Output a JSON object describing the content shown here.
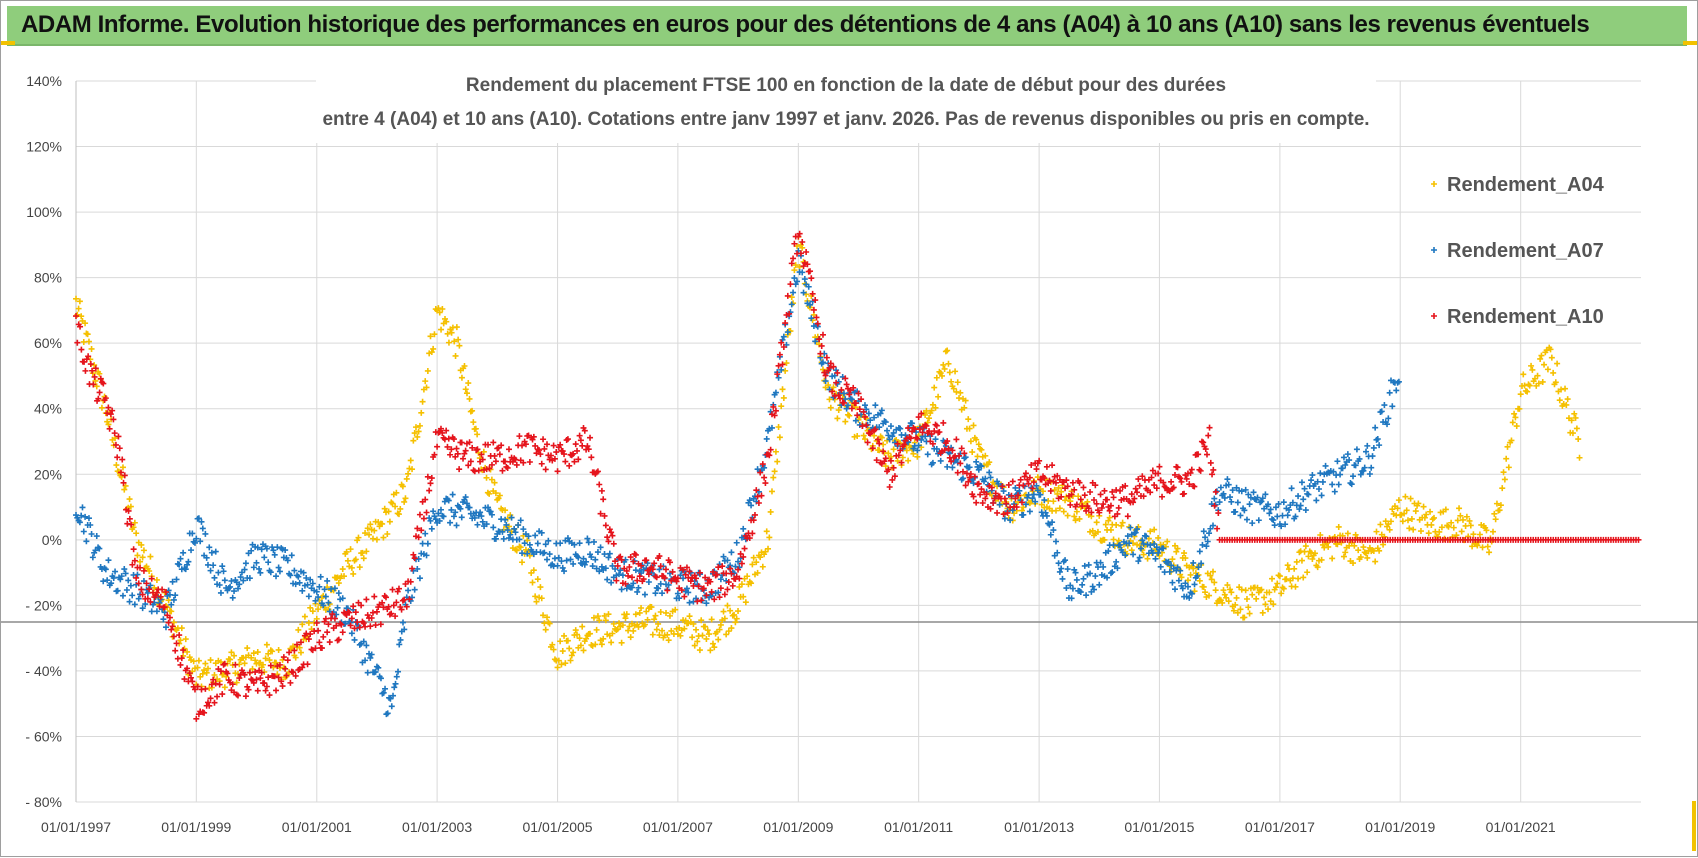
{
  "header": {
    "title": "ADAM Informe. Evolution historique des performances en euros pour des détentions de 4 ans (A04) à 10 ans (A10) sans les revenus éventuels"
  },
  "chart_data": {
    "type": "scatter",
    "title_line1": "Rendement du placement FTSE 100 en fonction de la date de début pour des durées",
    "title_line2": "entre 4 (A04) et 10 ans (A10). Cotations entre janv 1997 et janv. 2026. Pas de revenus disponibles ou pris en compte.",
    "xlabel": "",
    "ylabel": "",
    "x_range": [
      "1997-01-01",
      "2023-01-01"
    ],
    "ylim": [
      -80,
      140
    ],
    "y_ticks": [
      140,
      120,
      100,
      80,
      60,
      40,
      20,
      0,
      -20,
      -40,
      -60,
      -80
    ],
    "y_tick_labels": [
      "140%",
      "120%",
      "100%",
      "80%",
      "60%",
      "40%",
      "20%",
      "0%",
      "- 20%",
      "- 40%",
      "- 60%",
      "- 80%"
    ],
    "x_tick_labels": [
      "01/01/1997",
      "01/01/1999",
      "01/01/2001",
      "01/01/2003",
      "01/01/2005",
      "01/01/2007",
      "01/01/2009",
      "01/01/2011",
      "01/01/2013",
      "01/01/2015",
      "01/01/2017",
      "01/01/2019",
      "01/01/2021"
    ],
    "grid": true,
    "legend_position": "top-right",
    "marker": "+",
    "series": [
      {
        "name": "Rendement_A04",
        "color": "#f5c000",
        "x": [
          "1997-01-01",
          "1997-07-01",
          "1998-01-01",
          "1998-07-01",
          "1999-01-01",
          "1999-07-01",
          "2000-01-01",
          "2000-07-01",
          "2001-01-01",
          "2001-07-01",
          "2002-01-01",
          "2002-07-01",
          "2003-01-01",
          "2003-05-01",
          "2003-09-01",
          "2004-01-01",
          "2004-07-01",
          "2005-01-01",
          "2005-07-01",
          "2006-01-01",
          "2006-07-01",
          "2007-01-01",
          "2007-07-01",
          "2008-01-01",
          "2008-07-01",
          "2009-01-01",
          "2009-07-01",
          "2010-01-01",
          "2010-07-01",
          "2011-01-01",
          "2011-07-01",
          "2012-01-01",
          "2012-07-01",
          "2013-01-01",
          "2013-07-01",
          "2014-01-01",
          "2014-07-01",
          "2015-01-01",
          "2015-07-01",
          "2016-01-01",
          "2016-07-01",
          "2017-01-01",
          "2017-07-01",
          "2018-01-01",
          "2018-07-01",
          "2019-01-01",
          "2019-07-01",
          "2020-01-01",
          "2020-07-01",
          "2021-01-01",
          "2021-07-01",
          "2022-01-01"
        ],
        "y": [
          72,
          40,
          0,
          -20,
          -42,
          -40,
          -36,
          -38,
          -22,
          -8,
          2,
          15,
          70,
          60,
          30,
          10,
          -5,
          -35,
          -28,
          -27,
          -25,
          -26,
          -30,
          -20,
          0,
          90,
          45,
          35,
          25,
          30,
          55,
          25,
          10,
          15,
          12,
          5,
          0,
          -2,
          -10,
          -15,
          -20,
          -15,
          -5,
          0,
          -5,
          10,
          5,
          5,
          -2,
          45,
          55,
          28
        ]
      },
      {
        "name": "Rendement_A07",
        "color": "#1f77c0",
        "x": [
          "1997-01-01",
          "1997-07-01",
          "1998-01-01",
          "1998-07-01",
          "1999-01-01",
          "1999-07-01",
          "2000-01-01",
          "2000-07-01",
          "2001-01-01",
          "2001-07-01",
          "2002-01-01",
          "2002-04-01",
          "2002-07-01",
          "2003-01-01",
          "2003-07-01",
          "2004-01-01",
          "2004-07-01",
          "2005-01-01",
          "2005-07-01",
          "2006-01-01",
          "2006-07-01",
          "2007-01-01",
          "2007-07-01",
          "2008-01-01",
          "2008-07-01",
          "2009-01-01",
          "2009-07-01",
          "2010-01-01",
          "2010-07-01",
          "2011-01-01",
          "2011-07-01",
          "2012-01-01",
          "2012-07-01",
          "2013-01-01",
          "2013-07-01",
          "2014-01-01",
          "2014-07-01",
          "2015-01-01",
          "2015-07-01",
          "2016-01-01",
          "2016-07-01",
          "2017-01-01",
          "2017-07-01",
          "2018-01-01",
          "2018-07-01",
          "2019-01-01"
        ],
        "y": [
          12,
          -10,
          -15,
          -22,
          5,
          -15,
          -5,
          -8,
          -15,
          -22,
          -42,
          -52,
          -20,
          10,
          8,
          5,
          0,
          -5,
          -3,
          -10,
          -12,
          -14,
          -15,
          -5,
          30,
          85,
          50,
          40,
          35,
          30,
          25,
          20,
          10,
          15,
          -15,
          -10,
          0,
          -5,
          -15,
          15,
          10,
          8,
          15,
          20,
          25,
          52
        ]
      },
      {
        "name": "Rendement_A10",
        "color": "#e5141c",
        "x": [
          "1997-01-01",
          "1997-04-01",
          "1997-07-01",
          "1997-10-01",
          "1998-01-01",
          "1998-07-01",
          "1999-01-01",
          "1999-07-01",
          "2000-01-01",
          "2000-07-01",
          "2001-01-01",
          "2001-07-01",
          "2002-01-01",
          "2002-07-01",
          "2003-01-01",
          "2003-07-01",
          "2004-01-01",
          "2004-07-01",
          "2005-01-01",
          "2005-07-01",
          "2006-01-01",
          "2006-07-01",
          "2007-01-01",
          "2007-07-01",
          "2008-01-01",
          "2008-07-01",
          "2009-01-01",
          "2009-07-01",
          "2010-01-01",
          "2010-07-01",
          "2011-01-01",
          "2011-07-01",
          "2012-01-01",
          "2012-07-01",
          "2013-01-01",
          "2013-07-01",
          "2014-01-01",
          "2014-07-01",
          "2015-01-01",
          "2015-07-01",
          "2015-11-01",
          "2016-01-01",
          "2017-01-01",
          "2018-01-01",
          "2019-01-01",
          "2020-01-01",
          "2021-01-01",
          "2022-01-01",
          "2023-01-01"
        ],
        "y": [
          65,
          50,
          42,
          25,
          -12,
          -20,
          -50,
          -42,
          -45,
          -40,
          -30,
          -25,
          -22,
          -18,
          30,
          25,
          25,
          28,
          25,
          30,
          -10,
          -8,
          -12,
          -15,
          -10,
          25,
          95,
          50,
          40,
          20,
          35,
          30,
          15,
          12,
          20,
          15,
          12,
          12,
          18,
          18,
          30,
          0,
          0,
          0,
          0,
          0,
          0,
          0,
          0
        ]
      }
    ]
  }
}
